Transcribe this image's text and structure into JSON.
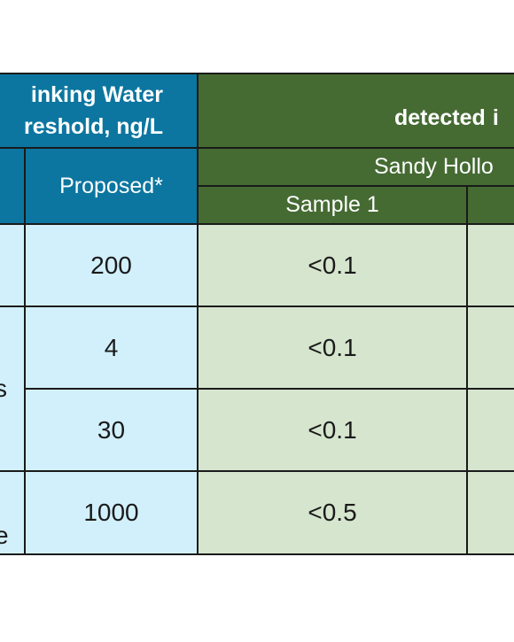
{
  "header": {
    "drinking_line1": "inking Water",
    "drinking_line2": "reshold, ng/L",
    "detected": "detected",
    "detected_tail": "i",
    "proposed": "Proposed*",
    "sandy": "Sandy Hollo",
    "sample1": "Sample 1"
  },
  "rows": [
    {
      "proposed": "200",
      "sample1": "<0.1"
    },
    {
      "proposed": "4",
      "sample1": "<0.1"
    },
    {
      "proposed": "30",
      "sample1": "<0.1"
    },
    {
      "proposed": "1000",
      "sample1": "<0.5"
    }
  ],
  "partial_labels": {
    "row_group_2": "s",
    "row_group_3": "e"
  }
}
